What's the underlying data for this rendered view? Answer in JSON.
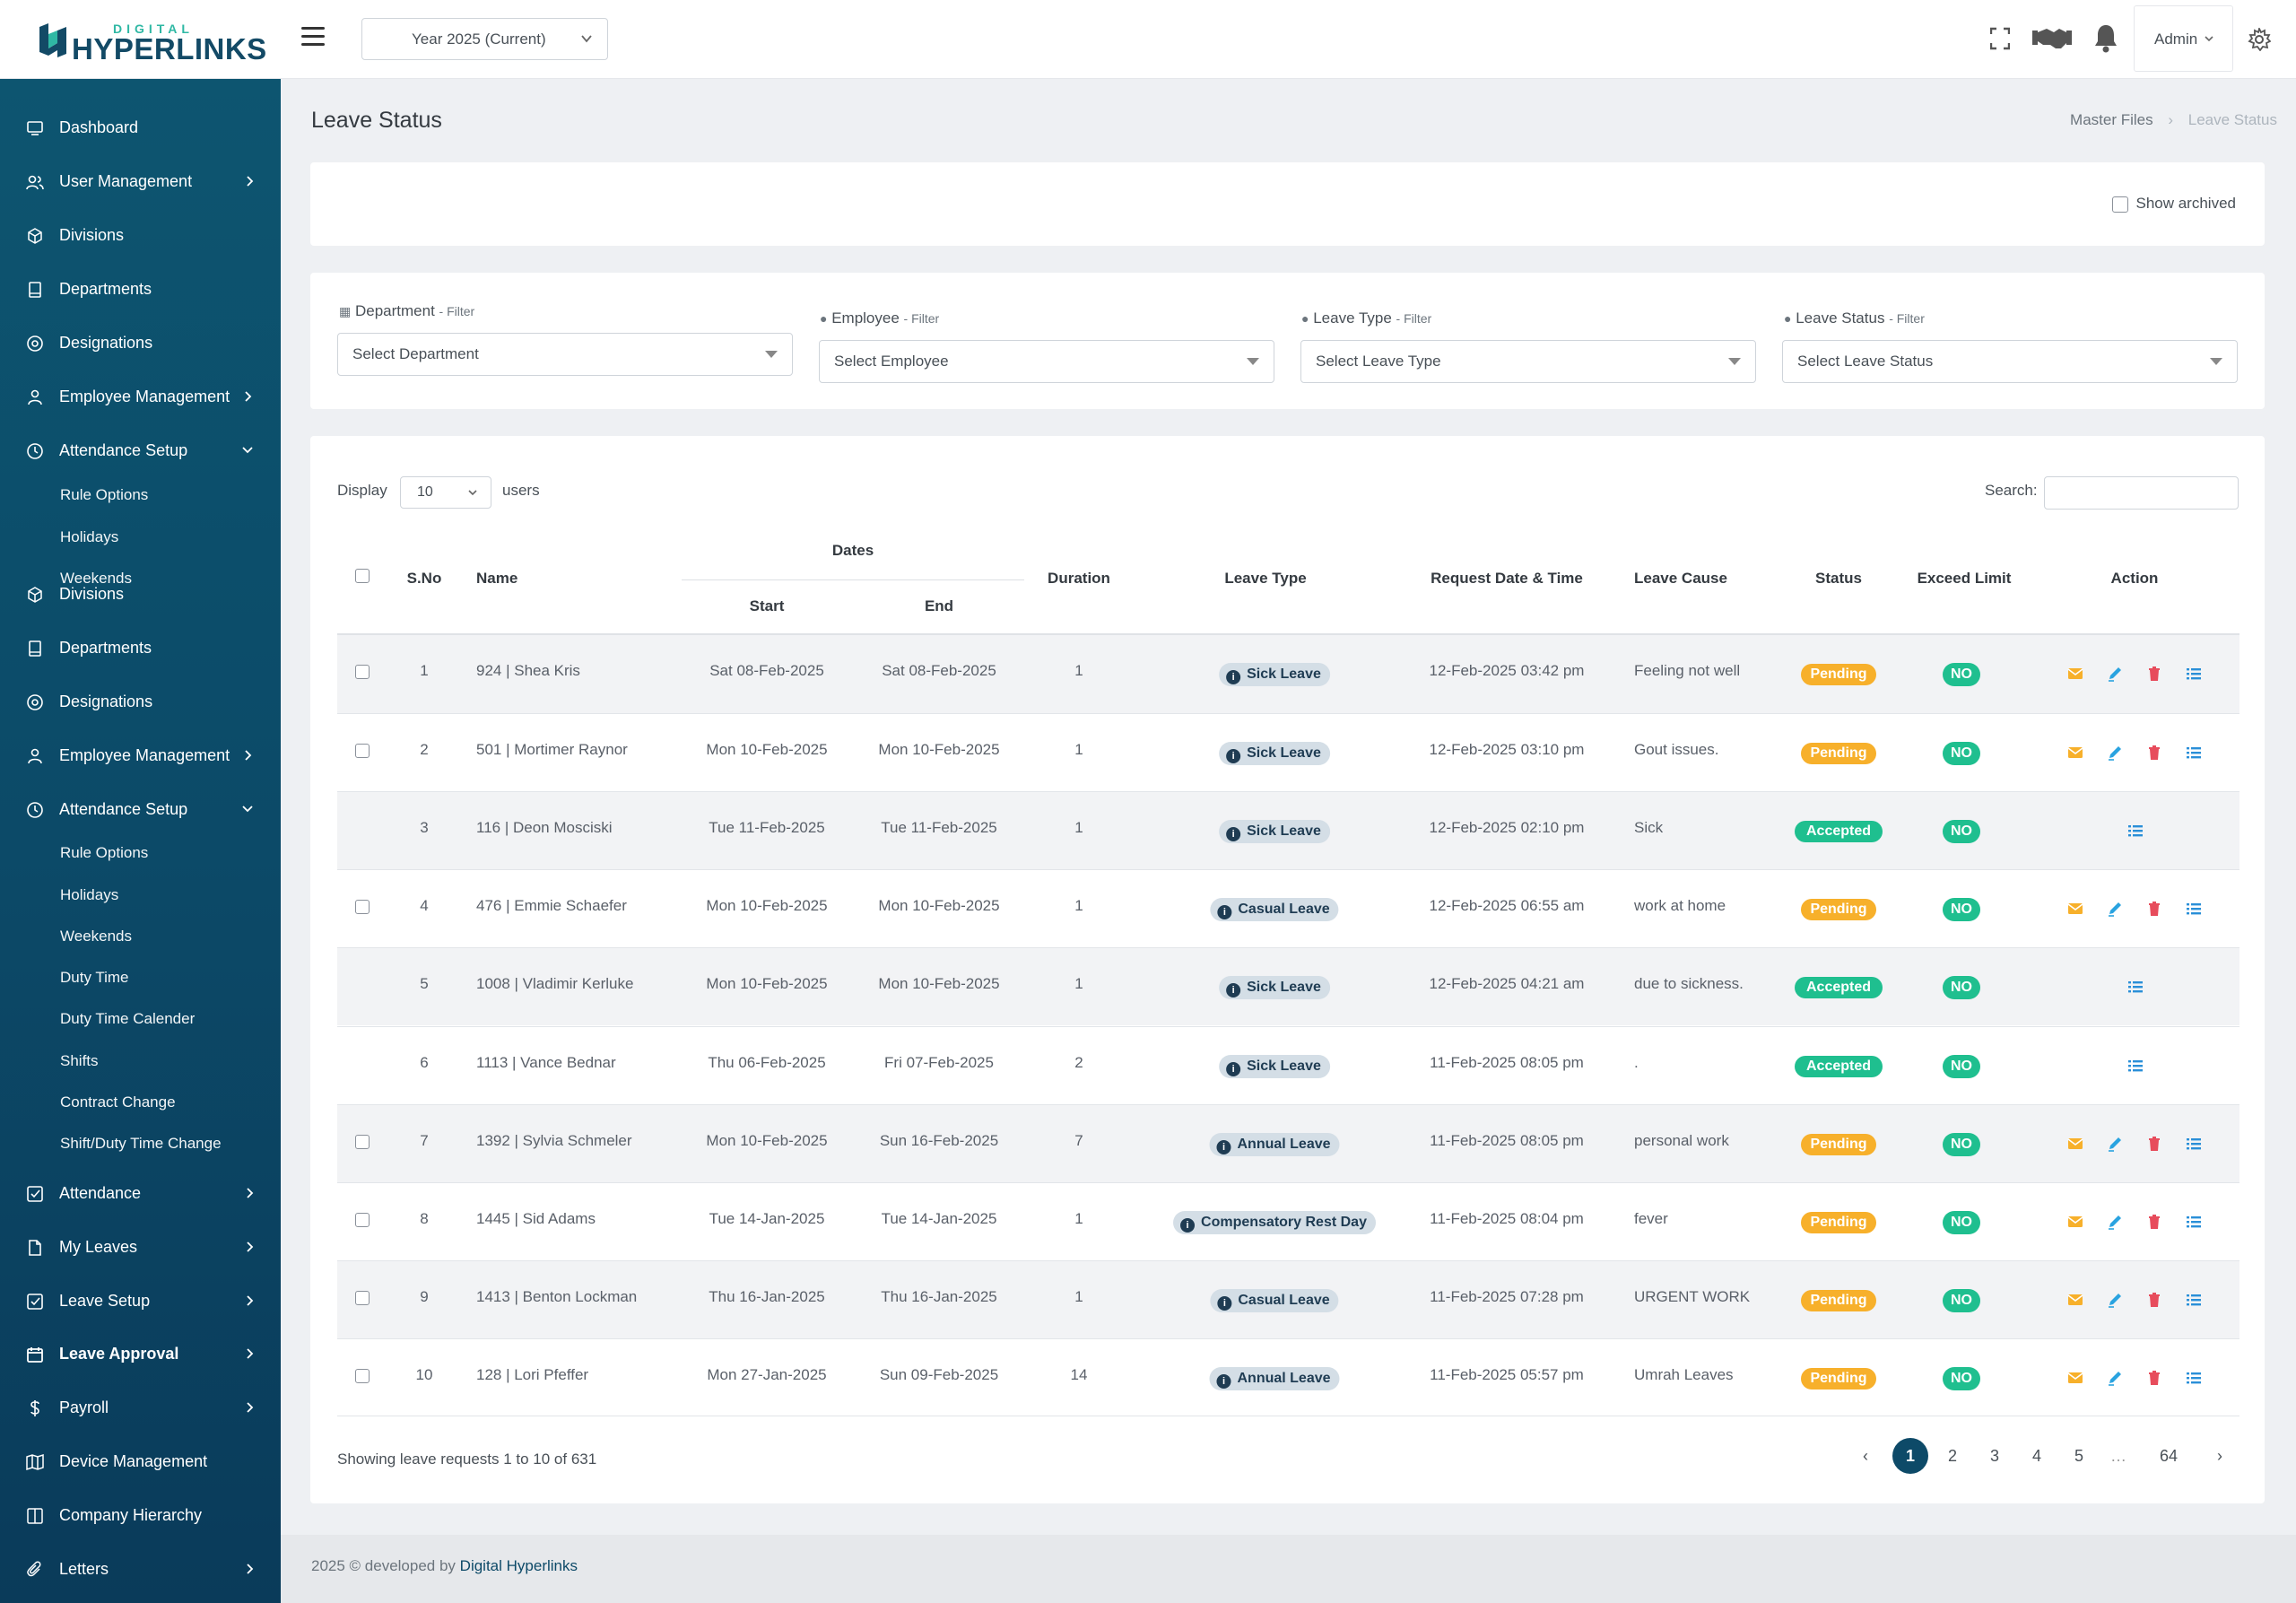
{
  "app": {
    "logo_small": "DIGITAL",
    "logo_big": "HYPERLINKS"
  },
  "topbar": {
    "year_select": "Year 2025 (Current)",
    "admin_label": "Admin",
    "icons": [
      "fullscreen-icon",
      "handshake-icon",
      "bell-icon",
      "gear-icon"
    ]
  },
  "sidebar": {
    "items": [
      {
        "label": "Dashboard",
        "icon": "monitor-icon"
      },
      {
        "label": "User Management",
        "icon": "users-icon"
      },
      {
        "label": "Divisions",
        "icon": "hexagon-icon"
      },
      {
        "label": "Departments",
        "icon": "book-icon"
      },
      {
        "label": "Designations",
        "icon": "target-icon"
      },
      {
        "label": "Employee Management",
        "icon": "person-icon"
      },
      {
        "label": "Attendance Setup",
        "icon": "clock-icon"
      },
      {
        "label": "Rule Options"
      },
      {
        "label": "Holidays"
      },
      {
        "label": "Weekends"
      },
      {
        "label": "Divisions",
        "icon": "hexagon-icon"
      },
      {
        "label": "Departments",
        "icon": "book-icon"
      },
      {
        "label": "Designations",
        "icon": "target-icon"
      },
      {
        "label": "Employee Management",
        "icon": "person-icon"
      },
      {
        "label": "Attendance Setup",
        "icon": "clock-icon"
      },
      {
        "label": "Rule Options"
      },
      {
        "label": "Holidays"
      },
      {
        "label": "Weekends"
      },
      {
        "label": "Duty Time"
      },
      {
        "label": "Duty Time Calender"
      },
      {
        "label": "Shifts"
      },
      {
        "label": "Contract Change"
      },
      {
        "label": "Shift/Duty Time Change"
      },
      {
        "label": "Attendance",
        "icon": "check-square-icon"
      },
      {
        "label": "My Leaves",
        "icon": "file-icon"
      },
      {
        "label": "Leave Setup",
        "icon": "check-square-icon"
      },
      {
        "label": "Leave Approval",
        "icon": "calendar-icon"
      },
      {
        "label": "Payroll",
        "icon": "dollar-icon"
      },
      {
        "label": "Device Management",
        "icon": "map-icon"
      },
      {
        "label": "Company Hierarchy",
        "icon": "columns-icon"
      },
      {
        "label": "Letters",
        "icon": "paperclip-icon"
      }
    ]
  },
  "page": {
    "title": "Leave Status",
    "breadcrumb": [
      "Master Files",
      "Leave Status"
    ],
    "show_archived": "Show archived"
  },
  "filters": [
    {
      "label": "Department",
      "suffix": "- Filter",
      "placeholder": "Select Department"
    },
    {
      "label": "Employee",
      "suffix": "- Filter",
      "placeholder": "Select Employee"
    },
    {
      "label": "Leave Type",
      "suffix": "- Filter",
      "placeholder": "Select Leave Type"
    },
    {
      "label": "Leave Status",
      "suffix": "- Filter",
      "placeholder": "Select Leave Status"
    }
  ],
  "table": {
    "display_label": "Display",
    "display_value": "10",
    "users_label": "users",
    "search_label": "Search:",
    "headers": {
      "sno": "S.No",
      "name": "Name",
      "dates": "Dates",
      "start": "Start",
      "end": "End",
      "duration": "Duration",
      "leave_type": "Leave Type",
      "request": "Request Date & Time",
      "cause": "Leave Cause",
      "status": "Status",
      "exceed": "Exceed Limit",
      "action": "Action"
    },
    "rows": [
      {
        "sno": "1",
        "name": "924 | Shea Kris",
        "start": "Sat 08-Feb-2025",
        "end": "Sat 08-Feb-2025",
        "duration": "1",
        "leave_type": "Sick Leave",
        "request": "12-Feb-2025 03:42 pm",
        "cause": "Feeling not well",
        "status": "Pending",
        "exceed": "NO"
      },
      {
        "sno": "2",
        "name": "501 | Mortimer Raynor",
        "start": "Mon 10-Feb-2025",
        "end": "Mon 10-Feb-2025",
        "duration": "1",
        "leave_type": "Sick Leave",
        "request": "12-Feb-2025 03:10 pm",
        "cause": "Gout issues.",
        "status": "Pending",
        "exceed": "NO"
      },
      {
        "sno": "3",
        "name": "116 | Deon Mosciski",
        "start": "Tue 11-Feb-2025",
        "end": "Tue 11-Feb-2025",
        "duration": "1",
        "leave_type": "Sick Leave",
        "request": "12-Feb-2025 02:10 pm",
        "cause": "Sick",
        "status": "Accepted",
        "exceed": "NO"
      },
      {
        "sno": "4",
        "name": "476 | Emmie Schaefer",
        "start": "Mon 10-Feb-2025",
        "end": "Mon 10-Feb-2025",
        "duration": "1",
        "leave_type": "Casual Leave",
        "request": "12-Feb-2025 06:55 am",
        "cause": "work at home",
        "status": "Pending",
        "exceed": "NO"
      },
      {
        "sno": "5",
        "name": "1008 | Vladimir Kerluke",
        "start": "Mon 10-Feb-2025",
        "end": "Mon 10-Feb-2025",
        "duration": "1",
        "leave_type": "Sick Leave",
        "request": "12-Feb-2025 04:21 am",
        "cause": "due to sickness.",
        "status": "Accepted",
        "exceed": "NO"
      },
      {
        "sno": "6",
        "name": "1113 | Vance Bednar",
        "start": "Thu 06-Feb-2025",
        "end": "Fri 07-Feb-2025",
        "duration": "2",
        "leave_type": "Sick Leave",
        "request": "11-Feb-2025 08:05 pm",
        "cause": ".",
        "status": "Accepted",
        "exceed": "NO"
      },
      {
        "sno": "7",
        "name": "1392 | Sylvia Schmeler",
        "start": "Mon 10-Feb-2025",
        "end": "Sun 16-Feb-2025",
        "duration": "7",
        "leave_type": "Annual Leave",
        "request": "11-Feb-2025 08:05 pm",
        "cause": "personal work",
        "status": "Pending",
        "exceed": "NO"
      },
      {
        "sno": "8",
        "name": "1445 | Sid Adams",
        "start": "Tue 14-Jan-2025",
        "end": "Tue 14-Jan-2025",
        "duration": "1",
        "leave_type": "Compensatory Rest Day",
        "request": "11-Feb-2025 08:04 pm",
        "cause": "fever",
        "status": "Pending",
        "exceed": "NO"
      },
      {
        "sno": "9",
        "name": "1413 | Benton Lockman",
        "start": "Thu 16-Jan-2025",
        "end": "Thu 16-Jan-2025",
        "duration": "1",
        "leave_type": "Casual Leave",
        "request": "11-Feb-2025 07:28 pm",
        "cause": "URGENT WORK",
        "status": "Pending",
        "exceed": "NO"
      },
      {
        "sno": "10",
        "name": "128 | Lori Pfeffer",
        "start": "Mon 27-Jan-2025",
        "end": "Sun 09-Feb-2025",
        "duration": "14",
        "leave_type": "Annual Leave",
        "request": "11-Feb-2025 05:57 pm",
        "cause": "Umrah Leaves",
        "status": "Pending",
        "exceed": "NO"
      }
    ],
    "showing": "Showing leave requests 1 to 10 of 631",
    "pagination": [
      "‹",
      "1",
      "2",
      "3",
      "4",
      "5",
      "…",
      "64",
      "›"
    ]
  },
  "colors": {
    "sidebar": "#0c4a68",
    "pending": "#f7b02b",
    "accepted": "#1fbf8f",
    "mail": "#f7b02b",
    "edit": "#2aa3e0",
    "delete": "#e74c5c",
    "list": "#2a8fd8"
  },
  "footer": {
    "text": "2025 © developed by",
    "link": "Digital Hyperlinks"
  }
}
